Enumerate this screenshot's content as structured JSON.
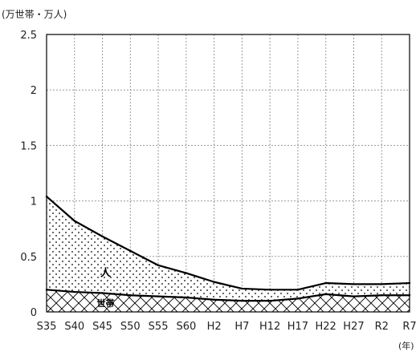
{
  "chart_data": {
    "type": "area",
    "y_unit_label": "(万世帯・万人)",
    "x_unit_label": "(年)",
    "categories": [
      "S35",
      "S40",
      "S45",
      "S50",
      "S55",
      "S60",
      "H2",
      "H7",
      "H12",
      "H17",
      "H22",
      "H27",
      "R2",
      "R7"
    ],
    "x_tick_labels": [
      "S35",
      "S40",
      "S45",
      "S50",
      "S55",
      "S60",
      "H2",
      "H7",
      "H12",
      "H17",
      "H22",
      "H27",
      "R2",
      "R7"
    ],
    "y_tick_labels": [
      "0",
      "0.5",
      "1",
      "1.5",
      "2",
      "2.5"
    ],
    "y_ticks": [
      0,
      0.5,
      1,
      1.5,
      2,
      2.5
    ],
    "ylim": [
      0,
      2.5
    ],
    "grid": true,
    "series": [
      {
        "name": "世帯",
        "fill": "crosshatch",
        "values": [
          0.2,
          0.18,
          0.17,
          0.15,
          0.14,
          0.13,
          0.11,
          0.1,
          0.1,
          0.12,
          0.16,
          0.14,
          0.15,
          0.15
        ]
      },
      {
        "name": "人",
        "fill": "dots",
        "values": [
          1.04,
          0.82,
          0.68,
          0.55,
          0.42,
          0.35,
          0.27,
          0.21,
          0.2,
          0.2,
          0.26,
          0.25,
          0.25,
          0.26
        ]
      }
    ],
    "colors": {
      "line": "#000000",
      "grid": "#999999",
      "axis": "#000000",
      "text": "#222222"
    }
  }
}
